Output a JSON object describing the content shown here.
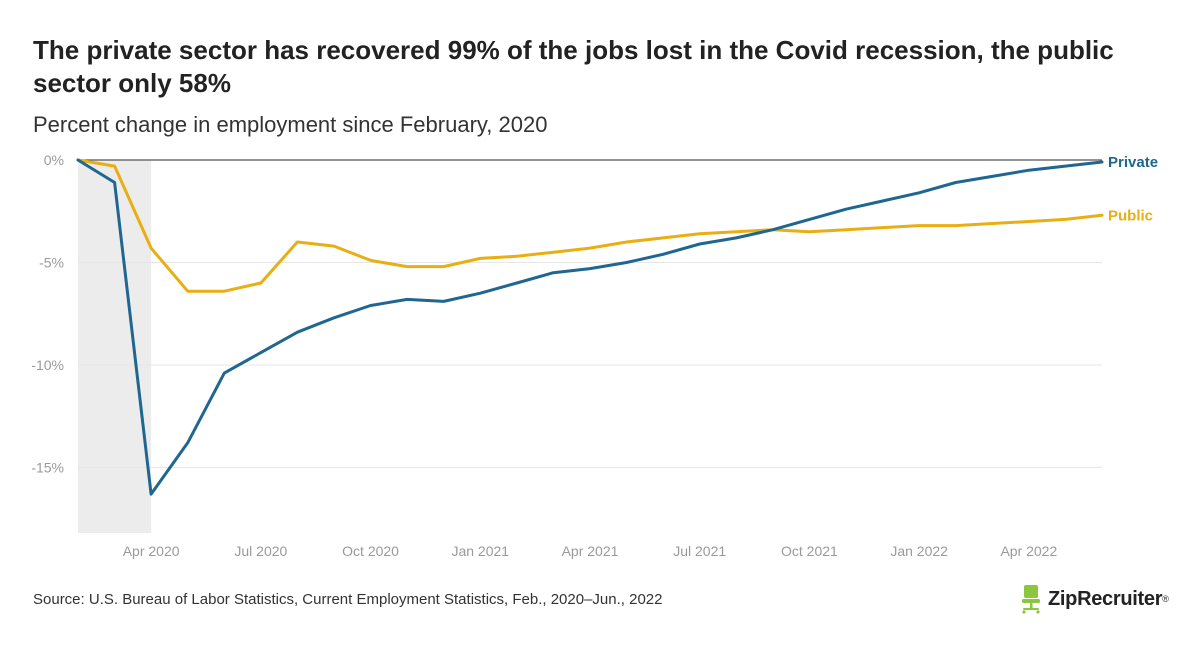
{
  "chart_data": {
    "type": "line",
    "title": "The private sector has recovered 99% of the jobs lost in the Covid recession, the public sector only 58%",
    "subtitle": "Percent change in employment since February, 2020",
    "xlabel": "",
    "ylabel": "",
    "x": [
      "Feb 2020",
      "Mar 2020",
      "Apr 2020",
      "May 2020",
      "Jun 2020",
      "Jul 2020",
      "Aug 2020",
      "Sep 2020",
      "Oct 2020",
      "Nov 2020",
      "Dec 2020",
      "Jan 2021",
      "Feb 2021",
      "Mar 2021",
      "Apr 2021",
      "May 2021",
      "Jun 2021",
      "Jul 2021",
      "Aug 2021",
      "Sep 2021",
      "Oct 2021",
      "Nov 2021",
      "Dec 2021",
      "Jan 2022",
      "Feb 2022",
      "Mar 2022",
      "Apr 2022",
      "May 2022",
      "Jun 2022"
    ],
    "x_tick_labels": [
      {
        "index": 2,
        "label": "Apr 2020"
      },
      {
        "index": 5,
        "label": "Jul 2020"
      },
      {
        "index": 8,
        "label": "Oct 2020"
      },
      {
        "index": 11,
        "label": "Jan 2021"
      },
      {
        "index": 14,
        "label": "Apr 2021"
      },
      {
        "index": 17,
        "label": "Jul 2021"
      },
      {
        "index": 20,
        "label": "Oct 2021"
      },
      {
        "index": 23,
        "label": "Jan 2022"
      },
      {
        "index": 26,
        "label": "Apr 2022"
      }
    ],
    "y_ticks": [
      {
        "value": 0,
        "label": "0%"
      },
      {
        "value": -5,
        "label": "-5%"
      },
      {
        "value": -10,
        "label": "-10%"
      },
      {
        "value": -15,
        "label": "-15%"
      }
    ],
    "ylim": [
      -18.2,
      0
    ],
    "recession_shading": {
      "from_index": 0,
      "to_index": 2
    },
    "grid": true,
    "series": [
      {
        "name": "Private",
        "color": "#1f6690",
        "values": [
          0,
          -1.1,
          -16.3,
          -13.8,
          -10.4,
          -9.4,
          -8.4,
          -7.7,
          -7.1,
          -6.8,
          -6.9,
          -6.5,
          -6.0,
          -5.5,
          -5.3,
          -5.0,
          -4.6,
          -4.1,
          -3.8,
          -3.4,
          -2.9,
          -2.4,
          -2.0,
          -1.6,
          -1.1,
          -0.8,
          -0.5,
          -0.3,
          -0.1
        ]
      },
      {
        "name": "Public",
        "color": "#e8ae12",
        "values": [
          0,
          -0.3,
          -4.3,
          -6.4,
          -6.4,
          -6.0,
          -4.0,
          -4.2,
          -4.9,
          -5.2,
          -5.2,
          -4.8,
          -4.7,
          -4.5,
          -4.3,
          -4.0,
          -3.8,
          -3.6,
          -3.5,
          -3.4,
          -3.5,
          -3.4,
          -3.3,
          -3.2,
          -3.2,
          -3.1,
          -3.0,
          -2.9,
          -2.7
        ]
      }
    ]
  },
  "footer": {
    "source": "Source: U.S. Bureau of Labor Statistics, Current Employment Statistics, Feb., 2020–Jun., 2022",
    "logo_text": "ZipRecruiter",
    "logo_mark": "®",
    "logo_color": "#8cc63f"
  }
}
